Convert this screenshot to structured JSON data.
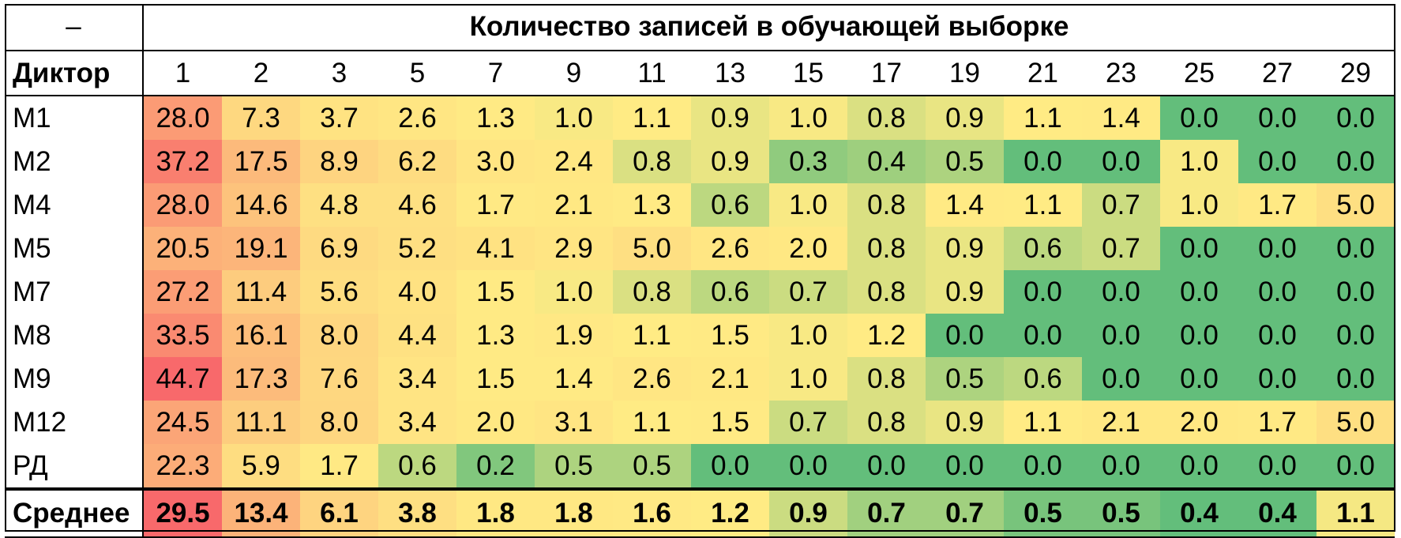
{
  "table": {
    "corner": "–",
    "title": "Количество записей в обучающей выборке",
    "row_header": "Диктор",
    "average_label": "Среднее"
  },
  "chart_data": {
    "type": "heatmap",
    "title": "Количество записей в обучающей выборке",
    "columns": [
      "1",
      "2",
      "3",
      "5",
      "7",
      "9",
      "11",
      "13",
      "15",
      "17",
      "19",
      "21",
      "23",
      "25",
      "27",
      "29"
    ],
    "rows": [
      "M1",
      "M2",
      "M4",
      "M5",
      "M7",
      "M8",
      "M9",
      "M12",
      "РД"
    ],
    "values": [
      [
        "28.0",
        "7.3",
        "3.7",
        "2.6",
        "1.3",
        "1.0",
        "1.1",
        "0.9",
        "1.0",
        "0.8",
        "0.9",
        "1.1",
        "1.4",
        "0.0",
        "0.0",
        "0.0"
      ],
      [
        "37.2",
        "17.5",
        "8.9",
        "6.2",
        "3.0",
        "2.4",
        "0.8",
        "0.9",
        "0.3",
        "0.4",
        "0.5",
        "0.0",
        "0.0",
        "1.0",
        "0.0",
        "0.0"
      ],
      [
        "28.0",
        "14.6",
        "4.8",
        "4.6",
        "1.7",
        "2.1",
        "1.3",
        "0.6",
        "1.0",
        "0.8",
        "1.4",
        "1.1",
        "0.7",
        "1.0",
        "1.7",
        "5.0"
      ],
      [
        "20.5",
        "19.1",
        "6.9",
        "5.2",
        "4.1",
        "2.9",
        "5.0",
        "2.6",
        "2.0",
        "0.8",
        "0.9",
        "0.6",
        "0.7",
        "0.0",
        "0.0",
        "0.0"
      ],
      [
        "27.2",
        "11.4",
        "5.6",
        "4.0",
        "1.5",
        "1.0",
        "0.8",
        "0.6",
        "0.7",
        "0.8",
        "0.9",
        "0.0",
        "0.0",
        "0.0",
        "0.0",
        "0.0"
      ],
      [
        "33.5",
        "16.1",
        "8.0",
        "4.4",
        "1.3",
        "1.9",
        "1.1",
        "1.5",
        "1.0",
        "1.2",
        "0.0",
        "0.0",
        "0.0",
        "0.0",
        "0.0",
        "0.0"
      ],
      [
        "44.7",
        "17.3",
        "7.6",
        "3.4",
        "1.5",
        "1.4",
        "2.6",
        "2.1",
        "1.0",
        "0.8",
        "0.5",
        "0.6",
        "0.0",
        "0.0",
        "0.0",
        "0.0"
      ],
      [
        "24.5",
        "11.1",
        "8.0",
        "3.4",
        "2.0",
        "3.1",
        "1.1",
        "1.5",
        "0.7",
        "0.8",
        "0.9",
        "1.1",
        "2.1",
        "2.0",
        "1.7",
        "5.0"
      ],
      [
        "22.3",
        "5.9",
        "1.7",
        "0.6",
        "0.2",
        "0.5",
        "0.5",
        "0.0",
        "0.0",
        "0.0",
        "0.0",
        "0.0",
        "0.0",
        "0.0",
        "0.0",
        "0.0"
      ]
    ],
    "averages": [
      "29.5",
      "13.4",
      "6.1",
      "3.8",
      "1.8",
      "1.8",
      "1.6",
      "1.2",
      "0.9",
      "0.7",
      "0.7",
      "0.5",
      "0.5",
      "0.4",
      "0.4",
      "1.1"
    ],
    "color_scale": {
      "low": "#63be7b",
      "mid": "#ffeb84",
      "high": "#f8696b"
    }
  }
}
